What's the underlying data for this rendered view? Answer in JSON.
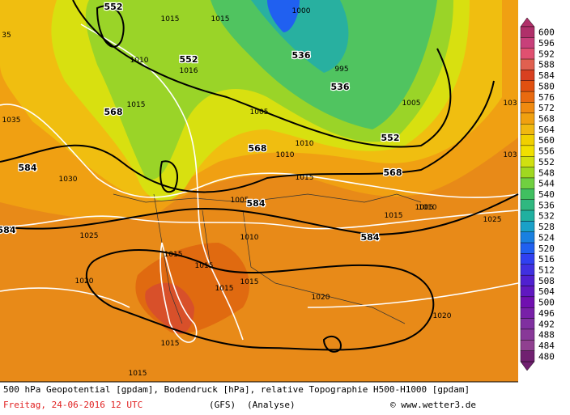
{
  "map": {
    "contour_labels": [
      552,
      552,
      1016,
      1000,
      536,
      995,
      536,
      1015,
      1010,
      1015,
      568,
      1035,
      1005,
      1015,
      568,
      1010,
      1010,
      552,
      1005,
      568,
      1015,
      584,
      1030,
      1005,
      584,
      1015,
      1025,
      1025,
      584,
      584,
      1010,
      1020,
      1010,
      1015,
      1015,
      1015,
      1020,
      1020,
      1015,
      1015,
      1015,
      103,
      103,
      35,
      1005
    ]
  },
  "colorbar": {
    "ticks": [
      600,
      596,
      592,
      588,
      584,
      580,
      576,
      572,
      568,
      564,
      560,
      556,
      552,
      548,
      544,
      540,
      536,
      532,
      528,
      524,
      520,
      516,
      512,
      508,
      504,
      500,
      496,
      492,
      488,
      484,
      480
    ],
    "colors": [
      "#b0306a",
      "#c8407a",
      "#e05070",
      "#e06050",
      "#d84020",
      "#e05010",
      "#e86a10",
      "#f08a10",
      "#f0a010",
      "#f0b810",
      "#f0d000",
      "#f0e000",
      "#d0e010",
      "#a0d820",
      "#70d040",
      "#40c060",
      "#30b880",
      "#20b0a0",
      "#1aa0c8",
      "#1a80e0",
      "#2060f0",
      "#3040f0",
      "#4030e0",
      "#5020d0",
      "#6018c0",
      "#7010b0",
      "#7820a8",
      "#8030a0",
      "#883898",
      "#904090",
      "#702070"
    ]
  },
  "footer": {
    "line1": "500 hPa Geopotential [gpdam], Bodendruck [hPa], relative Topographie H500-H1000 [gpdam]",
    "date": "Freitag, 24-06-2016  12 UTC",
    "model": "(GFS)",
    "run": "(Analyse)",
    "credit": "© www.wetter3.de"
  }
}
